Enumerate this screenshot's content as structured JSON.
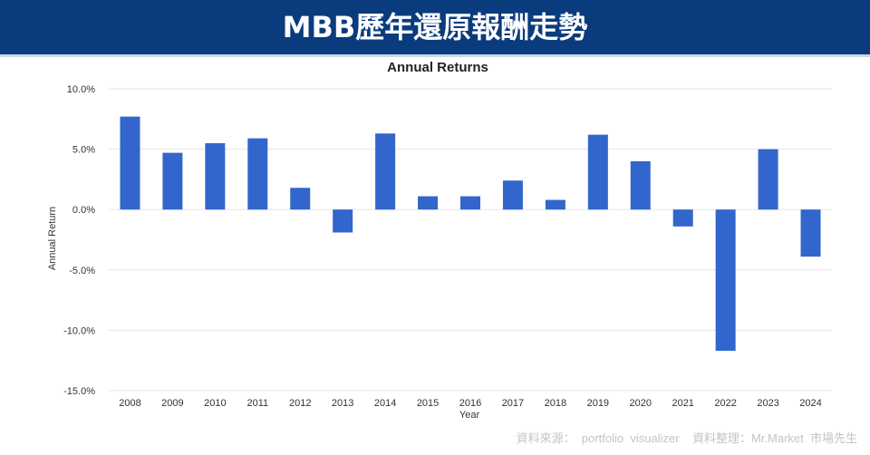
{
  "banner": {
    "title": "MBB歷年還原報酬走勢"
  },
  "footer": {
    "source": "資料來源：  portfolio  visualizer    資料整理：Mr.Market  市場先生"
  },
  "colors": {
    "banner": "#0a3c7d",
    "bar": "#3366cc",
    "grid": "#e6e6e6"
  },
  "chart_data": {
    "type": "bar",
    "title": "Annual Returns",
    "xlabel": "Year",
    "ylabel": "Annual Return",
    "categories": [
      "2008",
      "2009",
      "2010",
      "2011",
      "2012",
      "2013",
      "2014",
      "2015",
      "2016",
      "2017",
      "2018",
      "2019",
      "2020",
      "2021",
      "2022",
      "2023",
      "2024"
    ],
    "series": [
      {
        "values": [
          7.7,
          4.7,
          5.5,
          5.9,
          1.8,
          -1.9,
          6.3,
          1.1,
          1.1,
          2.4,
          0.8,
          6.2,
          4.0,
          -1.4,
          -11.7,
          5.0,
          -3.9
        ]
      }
    ],
    "ylim": [
      -15,
      10
    ],
    "yticks": [
      -15,
      -10,
      -5,
      0,
      5,
      10
    ],
    "ytick_labels": [
      "-15.0%",
      "-10.0%",
      "-5.0%",
      "0.0%",
      "5.0%",
      "10.0%"
    ],
    "grid": true,
    "legend": "none"
  }
}
